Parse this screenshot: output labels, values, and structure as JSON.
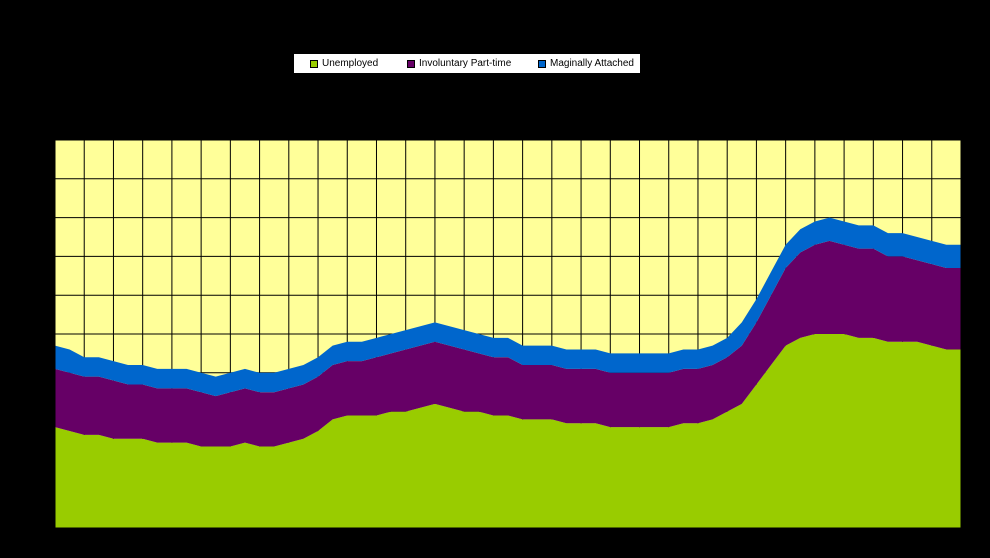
{
  "chart_data": {
    "type": "area",
    "stacked": true,
    "title": "",
    "xlabel": "",
    "ylabel": "",
    "grid": true,
    "legend_position": "top",
    "background": "#FFFF99",
    "colors": {
      "unemployed": "#99CC00",
      "involuntary": "#660066",
      "marginally": "#0066CC"
    },
    "x": [
      0,
      5,
      10,
      15,
      20,
      25,
      30,
      35,
      40,
      45,
      50,
      55,
      60,
      65,
      70,
      75,
      80,
      85,
      90,
      95,
      100,
      105,
      110,
      115,
      120,
      125,
      130,
      135,
      140,
      145,
      150,
      155,
      160,
      165,
      170,
      175,
      180,
      185,
      190,
      195,
      200,
      205,
      210,
      215,
      220,
      225,
      230,
      235,
      240,
      245,
      250,
      255,
      260,
      265,
      270,
      275,
      280,
      285,
      290,
      295,
      300,
      305,
      310
    ],
    "ylim": [
      0,
      100
    ],
    "series": [
      {
        "name": "Unemployed",
        "values": [
          26,
          25,
          24,
          24,
          23,
          23,
          23,
          22,
          22,
          22,
          21,
          21,
          21,
          22,
          21,
          21,
          22,
          23,
          25,
          28,
          29,
          29,
          29,
          30,
          30,
          31,
          32,
          31,
          30,
          30,
          29,
          29,
          28,
          28,
          28,
          27,
          27,
          27,
          26,
          26,
          26,
          26,
          26,
          27,
          27,
          28,
          30,
          32,
          37,
          42,
          47,
          49,
          50,
          50,
          50,
          49,
          49,
          48,
          48,
          48,
          47,
          46,
          46
        ]
      },
      {
        "name": "Involuntary Part-time",
        "values": [
          15,
          15,
          15,
          15,
          15,
          14,
          14,
          14,
          14,
          14,
          14,
          13,
          14,
          14,
          14,
          14,
          14,
          14,
          14,
          14,
          14,
          14,
          15,
          15,
          16,
          16,
          16,
          16,
          16,
          15,
          15,
          15,
          14,
          14,
          14,
          14,
          14,
          14,
          14,
          14,
          14,
          14,
          14,
          14,
          14,
          14,
          14,
          15,
          16,
          18,
          20,
          22,
          23,
          24,
          23,
          23,
          23,
          22,
          22,
          21,
          21,
          21,
          21
        ]
      },
      {
        "name": "Maginally Attached",
        "values": [
          6,
          6,
          5,
          5,
          5,
          5,
          5,
          5,
          5,
          5,
          5,
          5,
          5,
          5,
          5,
          5,
          5,
          5,
          5,
          5,
          5,
          5,
          5,
          5,
          5,
          5,
          5,
          5,
          5,
          5,
          5,
          5,
          5,
          5,
          5,
          5,
          5,
          5,
          5,
          5,
          5,
          5,
          5,
          5,
          5,
          5,
          5,
          6,
          6,
          6,
          6,
          6,
          6,
          6,
          6,
          6,
          6,
          6,
          6,
          6,
          6,
          6,
          6
        ]
      }
    ]
  },
  "legend": {
    "items": [
      {
        "label": "Unemployed"
      },
      {
        "label": "Involuntary Part-time"
      },
      {
        "label": "Maginally Attached"
      }
    ]
  }
}
